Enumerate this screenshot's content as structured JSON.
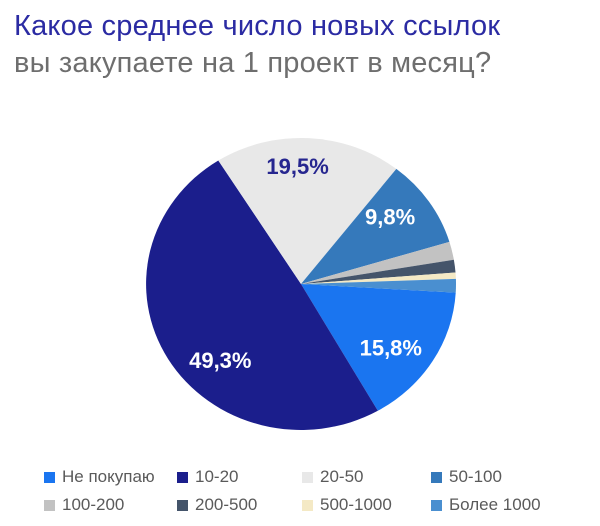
{
  "title": {
    "line1": "Какое среднее число новых ссылок",
    "line2": "вы закупаете на 1 проект в месяц?"
  },
  "colors": {
    "title": "#2B2BA3",
    "subtitle": "#6E6E6E",
    "legend_text": "#5A5A5A",
    "background": "#FFFFFF"
  },
  "chart_data": {
    "type": "pie",
    "title": "Какое среднее число новых ссылок вы закупаете на 1 проект в месяц?",
    "legend_position": "bottom",
    "direction": "clockwise",
    "start_angle_deg_cw_from_top": 93.4,
    "slices": [
      {
        "label": "Не покупаю",
        "value": 15.8,
        "pct_label": "15,8%",
        "color": "#1A75F0",
        "label_color": "#FFFFFF"
      },
      {
        "label": "10-20",
        "value": 49.3,
        "pct_label": "49,3%",
        "color": "#1B1E8C",
        "label_color": "#FFFFFF"
      },
      {
        "label": "20-50",
        "value": 19.5,
        "pct_label": "19,5%",
        "color": "#E8E8E8",
        "label_color": "#26268F"
      },
      {
        "label": "50-100",
        "value": 9.8,
        "pct_label": "9,8%",
        "color": "#3579BB",
        "label_color": "#FFFFFF"
      },
      {
        "label": "100-200",
        "value": 2.0,
        "pct_label": "",
        "color": "#C2C2C2"
      },
      {
        "label": "200-500",
        "value": 1.4,
        "pct_label": "",
        "color": "#44546A"
      },
      {
        "label": "500-1000",
        "value": 0.7,
        "pct_label": "",
        "color": "#F4E9C5"
      },
      {
        "label": "Более 1000",
        "value": 1.5,
        "pct_label": "",
        "color": "#4A8FD0"
      }
    ]
  }
}
